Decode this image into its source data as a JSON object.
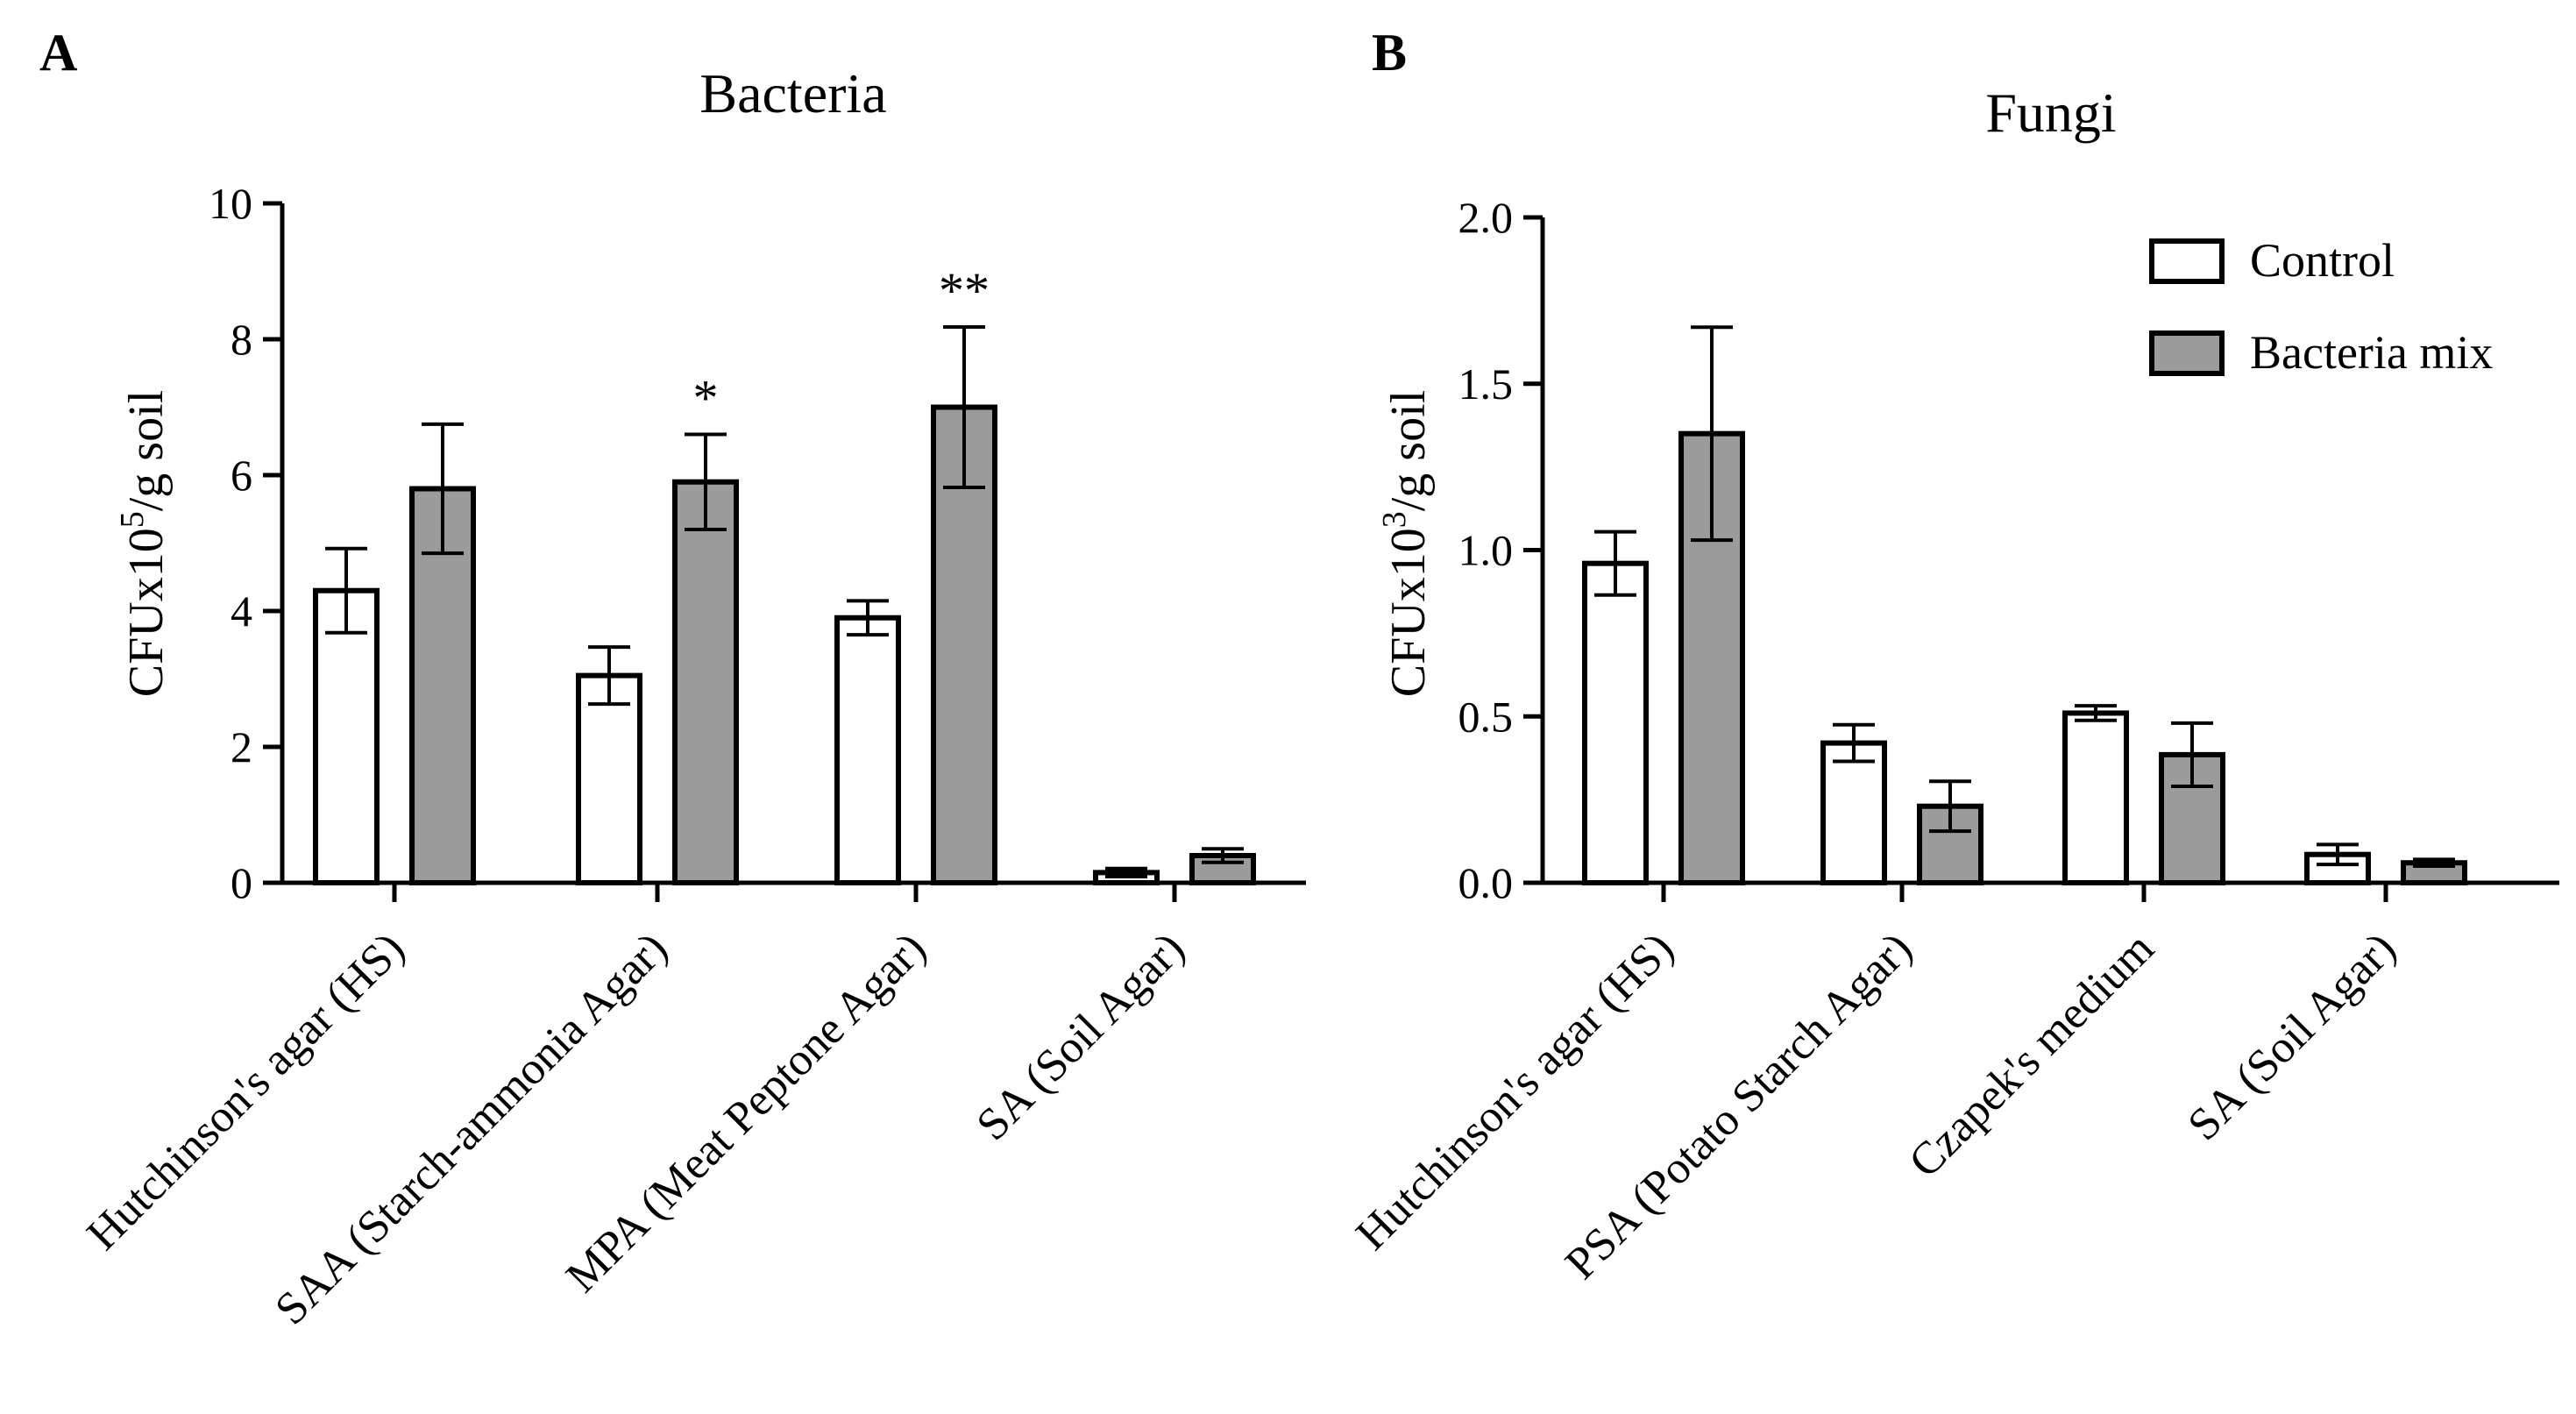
{
  "colors": {
    "control": "#ffffff",
    "bacteria_mix": "#9b9b9b",
    "stroke": "#000000"
  },
  "legend": {
    "items": [
      {
        "label": "Control",
        "color": "#ffffff"
      },
      {
        "label": "Bacteria mix",
        "color": "#9b9b9b"
      }
    ],
    "placement": "top-right"
  },
  "chart_data": [
    {
      "panel": "A",
      "type": "bar",
      "title": "Bacteria",
      "ylabel": {
        "base": "CFUx10",
        "exp": "5",
        "unit": "/g soil"
      },
      "ylim": [
        0,
        10
      ],
      "yticks": [
        "0",
        "2",
        "4",
        "6",
        "8",
        "10"
      ],
      "ytick_values": [
        0,
        2,
        4,
        6,
        8,
        10
      ],
      "categories": [
        "Hutchinson's agar (HS)",
        "SAA (Starch-ammonia Agar)",
        "MPA (Meat Peptone Agar)",
        "SA (Soil Agar)"
      ],
      "series": [
        {
          "name": "Control",
          "values": [
            4.3,
            3.05,
            3.9,
            0.15
          ],
          "errors": [
            0.62,
            0.42,
            0.25,
            0.06
          ]
        },
        {
          "name": "Bacteria mix",
          "values": [
            5.8,
            5.9,
            7.0,
            0.4
          ],
          "errors": [
            0.95,
            0.7,
            1.18,
            0.1
          ]
        }
      ],
      "annotations": [
        {
          "category_index": 1,
          "series_index": 1,
          "text": "*"
        },
        {
          "category_index": 2,
          "series_index": 1,
          "text": "**"
        }
      ]
    },
    {
      "panel": "B",
      "type": "bar",
      "title": "Fungi",
      "ylabel": {
        "base": "CFUx10",
        "exp": "3",
        "unit": "/g soil"
      },
      "ylim": [
        0,
        2.0
      ],
      "yticks": [
        "0.0",
        "0.5",
        "1.0",
        "1.5",
        "2.0"
      ],
      "ytick_values": [
        0,
        0.5,
        1.0,
        1.5,
        2.0
      ],
      "categories": [
        "Hutchinson's agar (HS)",
        "PSA (Potato Starch Agar)",
        "Czapek's medium",
        "SA (Soil Agar)"
      ],
      "series": [
        {
          "name": "Control",
          "values": [
            0.96,
            0.42,
            0.51,
            0.085
          ],
          "errors": [
            0.095,
            0.055,
            0.022,
            0.03
          ]
        },
        {
          "name": "Bacteria mix",
          "values": [
            1.35,
            0.23,
            0.385,
            0.06
          ],
          "errors": [
            0.32,
            0.075,
            0.095,
            0.01
          ]
        }
      ],
      "annotations": []
    }
  ]
}
